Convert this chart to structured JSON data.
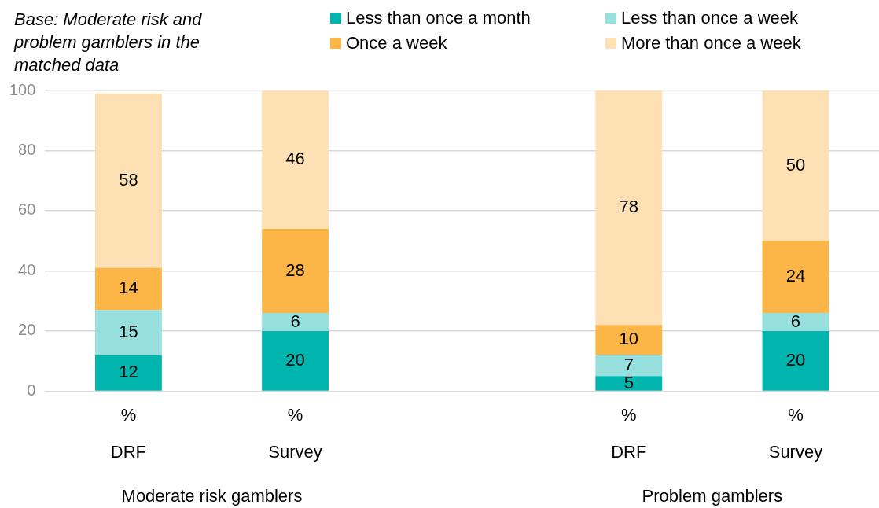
{
  "chart_data": {
    "type": "bar",
    "stacked": true,
    "title": "Base: Moderate risk and problem gamblers in the matched data",
    "categories": [
      "%\nDRF",
      "%\nSurvey",
      null,
      "%\nDRF",
      "%\nSurvey"
    ],
    "series": [
      {
        "name": "Less than once a month",
        "color": "#00b5ad",
        "values": [
          12,
          20,
          null,
          5,
          20
        ]
      },
      {
        "name": "Less than once a week",
        "color": "#97dfdd",
        "values": [
          15,
          6,
          null,
          7,
          6
        ]
      },
      {
        "name": "Once a week",
        "color": "#fbb647",
        "values": [
          14,
          28,
          null,
          10,
          24
        ]
      },
      {
        "name": "More than once a week",
        "color": "#fde0b3",
        "values": [
          58,
          46,
          null,
          78,
          50
        ]
      }
    ],
    "ylim": [
      0,
      100
    ],
    "yticks": [
      0,
      20,
      40,
      60,
      80,
      100
    ],
    "grid": "y",
    "legend": "top right",
    "data_labels": true,
    "annotations": [
      "Moderate risk gamblers",
      "Problem gamblers"
    ]
  }
}
